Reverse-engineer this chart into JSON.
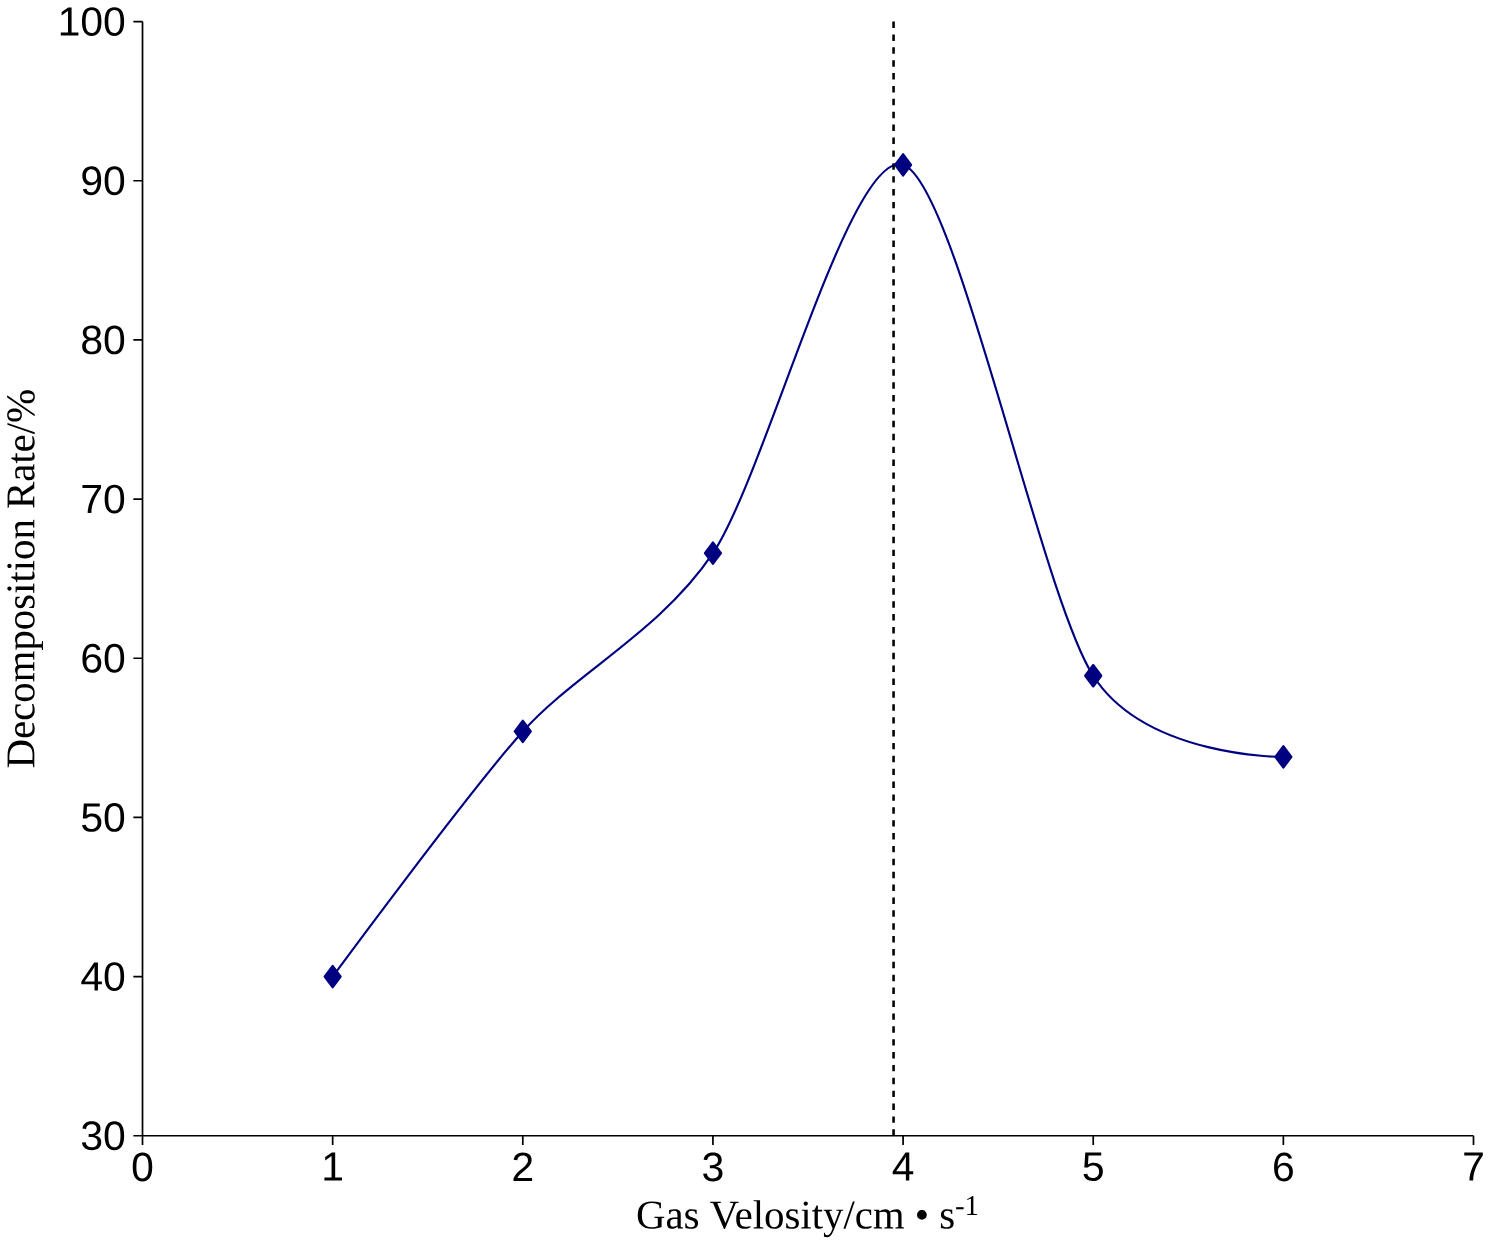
{
  "chart_data": {
    "type": "line",
    "xlabel": "Gas Velosity/cm • s$^{-1}$",
    "ylabel": "Decomposition Rate/%",
    "x": [
      1,
      2,
      3,
      4,
      5,
      6
    ],
    "series": [
      {
        "color": "#000080",
        "values": [
          40,
          55.4,
          66.6,
          91,
          58.9,
          53.8
        ]
      }
    ],
    "xlim": [
      0,
      7
    ],
    "xticks": [
      0,
      1,
      2,
      3,
      4,
      5,
      6,
      7
    ],
    "ylim": [
      30,
      100
    ],
    "yticks": [
      30,
      40,
      50,
      60,
      70,
      80,
      90,
      100
    ],
    "ref_lines": [
      {
        "axis": "x",
        "value": 3.95,
        "line_style": "dashed",
        "color": "#000000"
      }
    ],
    "marker": "diamond",
    "line_style": "solid",
    "grid": false
  }
}
